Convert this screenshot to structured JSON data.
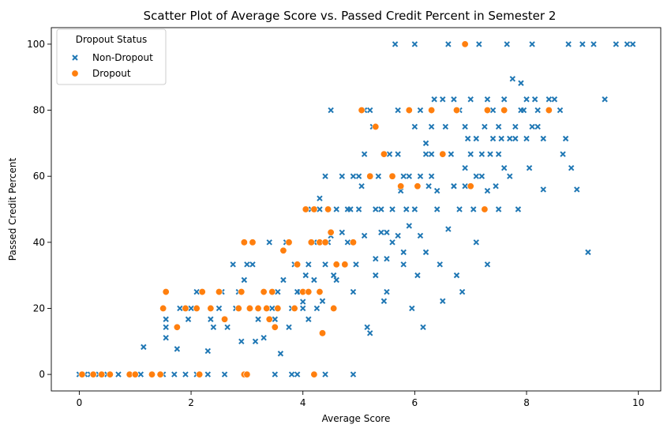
{
  "chart_data": {
    "type": "scatter",
    "title": "Scatter Plot of Average Score vs. Passed Credit Percent in Semester 2",
    "xlabel": "Average Score",
    "ylabel": "Passed Credit Percent",
    "xlim": [
      -0.5,
      10.4
    ],
    "ylim": [
      -5,
      105
    ],
    "xticks": [
      "0",
      "2",
      "4",
      "6",
      "8",
      "10"
    ],
    "yticks": [
      "0",
      "20",
      "40",
      "60",
      "80",
      "100"
    ],
    "grid": false,
    "legend": {
      "title": "Dropout Status",
      "placement": "top-left"
    },
    "series": [
      {
        "name": "Non-Dropout",
        "marker": "x",
        "color": "#1f77b4",
        "points": [
          [
            0.0,
            0
          ],
          [
            0.1,
            0
          ],
          [
            0.2,
            0
          ],
          [
            0.35,
            0
          ],
          [
            0.5,
            0
          ],
          [
            0.7,
            0
          ],
          [
            0.9,
            0
          ],
          [
            1.1,
            0
          ],
          [
            1.3,
            0
          ],
          [
            1.5,
            0
          ],
          [
            1.7,
            0
          ],
          [
            1.9,
            0
          ],
          [
            2.1,
            0
          ],
          [
            2.3,
            0
          ],
          [
            2.6,
            0
          ],
          [
            3.0,
            0
          ],
          [
            3.5,
            0
          ],
          [
            3.8,
            0
          ],
          [
            3.9,
            0
          ],
          [
            4.4,
            0
          ],
          [
            4.9,
            0
          ],
          [
            1.15,
            8.3
          ],
          [
            1.55,
            14.3
          ],
          [
            1.55,
            16.7
          ],
          [
            1.55,
            11.1
          ],
          [
            1.75,
            7.7
          ],
          [
            1.8,
            20
          ],
          [
            1.95,
            16.7
          ],
          [
            2.0,
            20
          ],
          [
            2.1,
            25
          ],
          [
            2.3,
            7.1
          ],
          [
            2.35,
            16.7
          ],
          [
            2.4,
            14.3
          ],
          [
            2.5,
            20
          ],
          [
            2.55,
            25
          ],
          [
            2.6,
            16.7
          ],
          [
            2.65,
            14.3
          ],
          [
            2.75,
            33.3
          ],
          [
            2.8,
            20
          ],
          [
            2.85,
            25
          ],
          [
            2.9,
            10
          ],
          [
            2.95,
            28.6
          ],
          [
            3.0,
            33.3
          ],
          [
            3.05,
            20
          ],
          [
            3.1,
            33.3
          ],
          [
            3.15,
            10
          ],
          [
            3.2,
            16.7
          ],
          [
            3.3,
            11.1
          ],
          [
            3.4,
            40
          ],
          [
            3.45,
            20
          ],
          [
            3.5,
            16.7
          ],
          [
            3.55,
            25
          ],
          [
            3.6,
            6.3
          ],
          [
            3.65,
            28.6
          ],
          [
            3.7,
            40
          ],
          [
            3.75,
            14.3
          ],
          [
            3.8,
            20
          ],
          [
            3.85,
            33.3
          ],
          [
            3.95,
            25
          ],
          [
            4.0,
            20
          ],
          [
            4.05,
            30
          ],
          [
            4.1,
            16.7
          ],
          [
            4.15,
            50
          ],
          [
            4.2,
            40
          ],
          [
            4.25,
            20
          ],
          [
            4.3,
            53.3
          ],
          [
            4.35,
            22.2
          ],
          [
            4.4,
            60
          ],
          [
            4.45,
            40
          ],
          [
            4.5,
            80
          ],
          [
            4.55,
            30
          ],
          [
            4.6,
            28.6
          ],
          [
            4.7,
            43
          ],
          [
            4.75,
            33.3
          ],
          [
            4.8,
            40
          ],
          [
            4.85,
            50
          ],
          [
            4.9,
            25
          ],
          [
            4.95,
            33.3
          ],
          [
            5.0,
            60
          ],
          [
            5.05,
            57
          ],
          [
            5.1,
            66.7
          ],
          [
            5.1,
            80
          ],
          [
            5.15,
            14.3
          ],
          [
            5.2,
            12.5
          ],
          [
            5.2,
            80
          ],
          [
            5.25,
            75
          ],
          [
            5.3,
            30
          ],
          [
            5.35,
            60
          ],
          [
            5.4,
            50
          ],
          [
            5.45,
            22.2
          ],
          [
            5.5,
            35
          ],
          [
            5.55,
            66.7
          ],
          [
            5.6,
            60
          ],
          [
            5.6,
            40
          ],
          [
            5.65,
            100
          ],
          [
            5.7,
            80
          ],
          [
            5.75,
            55.6
          ],
          [
            5.8,
            33.3
          ],
          [
            5.85,
            50
          ],
          [
            5.9,
            60
          ],
          [
            5.95,
            20
          ],
          [
            6.0,
            75
          ],
          [
            6.0,
            100
          ],
          [
            6.05,
            30
          ],
          [
            6.1,
            80
          ],
          [
            6.15,
            14.3
          ],
          [
            6.2,
            66.7
          ],
          [
            6.25,
            57
          ],
          [
            6.3,
            60
          ],
          [
            6.35,
            83.3
          ],
          [
            6.4,
            50
          ],
          [
            6.45,
            33.3
          ],
          [
            6.5,
            22.2
          ],
          [
            6.55,
            75
          ],
          [
            6.6,
            100
          ],
          [
            6.65,
            66.7
          ],
          [
            6.7,
            57
          ],
          [
            6.75,
            30
          ],
          [
            6.8,
            80
          ],
          [
            6.85,
            25
          ],
          [
            6.9,
            62.5
          ],
          [
            6.95,
            71.4
          ],
          [
            7.0,
            83.3
          ],
          [
            7.05,
            50
          ],
          [
            7.1,
            40
          ],
          [
            7.15,
            100
          ],
          [
            7.2,
            60
          ],
          [
            7.25,
            75
          ],
          [
            7.3,
            33.3
          ],
          [
            7.35,
            66.7
          ],
          [
            7.4,
            80
          ],
          [
            7.45,
            57
          ],
          [
            7.5,
            50
          ],
          [
            7.55,
            71.4
          ],
          [
            7.6,
            83.3
          ],
          [
            7.65,
            100
          ],
          [
            7.7,
            60
          ],
          [
            7.75,
            89.5
          ],
          [
            7.8,
            75
          ],
          [
            7.85,
            50
          ],
          [
            7.9,
            88.2
          ],
          [
            7.95,
            80
          ],
          [
            8.0,
            71.4
          ],
          [
            8.05,
            62.5
          ],
          [
            8.1,
            100
          ],
          [
            8.15,
            83.3
          ],
          [
            8.2,
            75
          ],
          [
            8.3,
            56
          ],
          [
            8.4,
            80
          ],
          [
            8.5,
            83.3
          ],
          [
            8.65,
            66.7
          ],
          [
            8.7,
            71.4
          ],
          [
            8.75,
            100
          ],
          [
            8.8,
            62.5
          ],
          [
            8.9,
            56
          ],
          [
            9.0,
            100
          ],
          [
            9.1,
            37
          ],
          [
            9.2,
            100
          ],
          [
            9.4,
            83.3
          ],
          [
            9.6,
            100
          ],
          [
            9.8,
            100
          ],
          [
            9.9,
            100
          ],
          [
            5.2,
            60
          ],
          [
            5.3,
            50
          ],
          [
            5.5,
            43
          ],
          [
            5.6,
            50
          ],
          [
            5.7,
            66.7
          ],
          [
            5.8,
            60
          ],
          [
            6.0,
            50
          ],
          [
            6.1,
            42
          ],
          [
            6.2,
            37
          ],
          [
            6.3,
            66.7
          ],
          [
            6.4,
            55.6
          ],
          [
            6.6,
            44
          ],
          [
            6.7,
            57
          ],
          [
            6.8,
            50
          ],
          [
            6.9,
            57
          ],
          [
            7.0,
            66.7
          ],
          [
            7.1,
            60
          ],
          [
            7.2,
            66.7
          ],
          [
            7.3,
            55.6
          ],
          [
            7.4,
            71.4
          ],
          [
            7.5,
            66.7
          ],
          [
            7.6,
            62.5
          ],
          [
            7.8,
            71.4
          ],
          [
            8.0,
            83.3
          ],
          [
            8.2,
            80
          ],
          [
            8.4,
            83.3
          ],
          [
            8.6,
            80
          ],
          [
            3.9,
            25
          ],
          [
            4.0,
            22
          ],
          [
            4.1,
            33.3
          ],
          [
            4.2,
            28.6
          ],
          [
            4.3,
            50
          ],
          [
            4.4,
            33.3
          ],
          [
            4.5,
            42
          ],
          [
            4.6,
            50
          ],
          [
            4.7,
            60
          ],
          [
            4.8,
            50
          ],
          [
            4.9,
            60
          ],
          [
            5.0,
            50
          ],
          [
            5.1,
            42
          ],
          [
            5.3,
            35
          ],
          [
            5.4,
            43
          ],
          [
            5.5,
            25
          ],
          [
            5.7,
            42
          ],
          [
            5.8,
            37
          ],
          [
            5.9,
            45
          ],
          [
            6.1,
            60
          ],
          [
            6.2,
            70
          ],
          [
            6.3,
            75
          ],
          [
            6.5,
            83.3
          ],
          [
            6.7,
            83.3
          ],
          [
            6.9,
            75
          ],
          [
            7.1,
            71.4
          ],
          [
            7.3,
            83.3
          ],
          [
            7.5,
            75
          ],
          [
            7.7,
            71.4
          ],
          [
            7.9,
            80
          ],
          [
            8.1,
            75
          ],
          [
            8.3,
            71.4
          ]
        ]
      },
      {
        "name": "Dropout",
        "marker": "o",
        "color": "#ff7f0e",
        "points": [
          [
            0.05,
            0
          ],
          [
            0.25,
            0
          ],
          [
            0.4,
            0
          ],
          [
            0.55,
            0
          ],
          [
            0.9,
            0
          ],
          [
            1.0,
            0
          ],
          [
            1.3,
            0
          ],
          [
            1.45,
            0
          ],
          [
            2.15,
            0
          ],
          [
            2.95,
            0
          ],
          [
            3.0,
            0
          ],
          [
            4.2,
            0
          ],
          [
            1.5,
            20
          ],
          [
            1.55,
            25
          ],
          [
            1.75,
            14.3
          ],
          [
            1.9,
            20
          ],
          [
            2.1,
            20
          ],
          [
            2.2,
            25
          ],
          [
            2.35,
            20
          ],
          [
            2.5,
            25
          ],
          [
            2.6,
            16.7
          ],
          [
            2.85,
            20
          ],
          [
            2.9,
            25
          ],
          [
            2.95,
            40
          ],
          [
            3.05,
            20
          ],
          [
            3.1,
            40
          ],
          [
            3.2,
            20
          ],
          [
            3.3,
            25
          ],
          [
            3.35,
            20
          ],
          [
            3.4,
            16.7
          ],
          [
            3.45,
            25
          ],
          [
            3.5,
            14.3
          ],
          [
            3.55,
            20
          ],
          [
            3.65,
            37.5
          ],
          [
            3.75,
            40
          ],
          [
            3.85,
            20
          ],
          [
            3.9,
            33.3
          ],
          [
            4.0,
            25
          ],
          [
            4.05,
            50
          ],
          [
            4.1,
            25
          ],
          [
            4.15,
            40
          ],
          [
            4.2,
            50
          ],
          [
            4.3,
            40
          ],
          [
            4.35,
            12.5
          ],
          [
            4.4,
            40
          ],
          [
            4.45,
            50
          ],
          [
            4.5,
            43
          ],
          [
            4.6,
            33.3
          ],
          [
            4.75,
            33.3
          ],
          [
            4.9,
            40
          ],
          [
            5.05,
            80
          ],
          [
            5.2,
            60
          ],
          [
            5.3,
            75
          ],
          [
            5.45,
            66.7
          ],
          [
            5.6,
            60
          ],
          [
            5.75,
            57
          ],
          [
            5.9,
            80
          ],
          [
            6.05,
            57
          ],
          [
            6.3,
            80
          ],
          [
            6.5,
            66.7
          ],
          [
            6.75,
            80
          ],
          [
            6.9,
            100
          ],
          [
            7.0,
            57
          ],
          [
            7.25,
            50
          ],
          [
            7.3,
            80
          ],
          [
            7.6,
            80
          ],
          [
            8.4,
            80
          ],
          [
            4.3,
            25
          ],
          [
            4.55,
            20
          ]
        ]
      }
    ]
  }
}
